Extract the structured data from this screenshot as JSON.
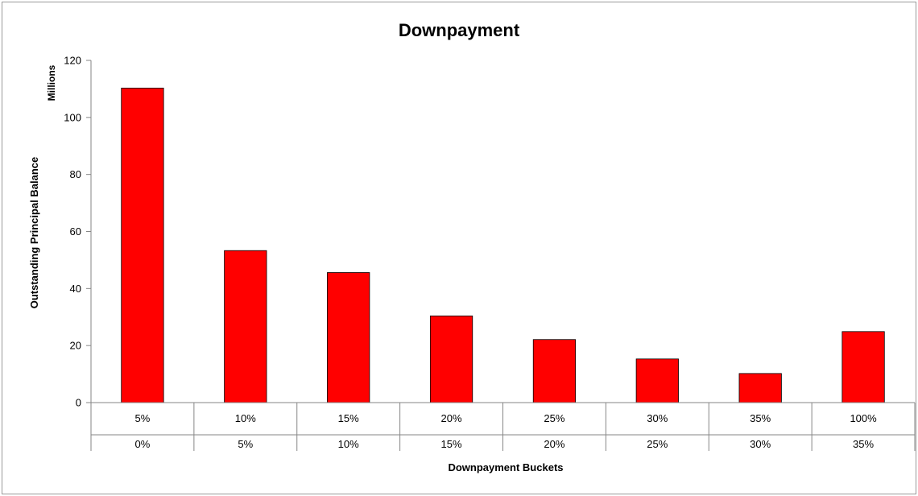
{
  "chart_data": {
    "type": "bar",
    "title": "Downpayment",
    "xlabel": "Downpayment Buckets",
    "ylabel": "Outstanding Principal Balance",
    "yunit": "Millions",
    "ylim": [
      0,
      120
    ],
    "yticks": [
      "0",
      "20",
      "40",
      "60",
      "80",
      "100",
      "120"
    ],
    "categories": [
      {
        "upper": "5%",
        "lower": "0%"
      },
      {
        "upper": "10%",
        "lower": "5%"
      },
      {
        "upper": "15%",
        "lower": "10%"
      },
      {
        "upper": "20%",
        "lower": "15%"
      },
      {
        "upper": "25%",
        "lower": "20%"
      },
      {
        "upper": "30%",
        "lower": "25%"
      },
      {
        "upper": "35%",
        "lower": "30%"
      },
      {
        "upper": "100%",
        "lower": "35%"
      }
    ],
    "values": [
      110.3,
      53.3,
      45.6,
      30.4,
      22.1,
      15.3,
      10.2,
      24.9
    ],
    "bar_color": "#ff0000",
    "bar_stroke": "#000000",
    "grid": false,
    "legend": "none"
  }
}
